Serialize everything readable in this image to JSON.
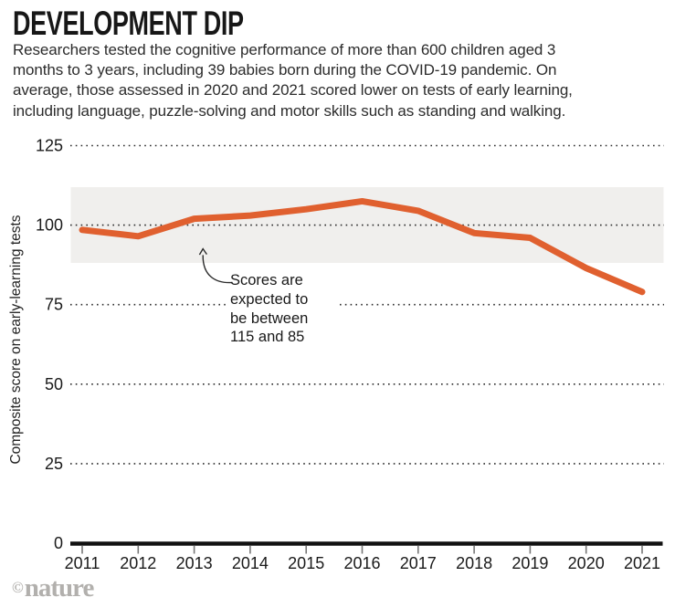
{
  "header": {
    "title": "DEVELOPMENT DIP",
    "subtitle": "Researchers tested the cognitive performance of more than 600 children aged 3\nmonths to 3 years, including 39 babies born during the COVID-19 pandemic. On\naverage, those assessed in 2020 and 2021 scored lower on tests of early learning,\nincluding language, puzzle-solving and motor skills such as standing and walking."
  },
  "chart_data": {
    "type": "line",
    "title": "DEVELOPMENT DIP",
    "x": [
      2011,
      2012,
      2013,
      2014,
      2015,
      2016,
      2017,
      2018,
      2019,
      2020,
      2021
    ],
    "series": [
      {
        "name": "Composite score on early-learning tests",
        "color": "#e0602f",
        "values": [
          98.5,
          96.5,
          102,
          103,
          105,
          107.5,
          104.5,
          97.5,
          96,
          86.5,
          79
        ]
      }
    ],
    "xlabel": "",
    "ylabel": "Composite score on early-learning tests",
    "yticks": [
      0,
      25,
      50,
      75,
      100,
      125
    ],
    "ylim": [
      0,
      130
    ],
    "grid": "dotted-horizontal",
    "legend": "none",
    "expected_band": {
      "low": 85,
      "high": 115
    },
    "annotation": {
      "text": "Scores are\nexpected to\nbe between\n115 and 85"
    }
  },
  "footer": {
    "logo_symbol": "©",
    "logo_text": "nature"
  },
  "colors": {
    "line": "#e0602f",
    "band": "#f0efed",
    "grid": "#2b2b2b",
    "axis": "#111111",
    "tick": "#777777",
    "text": "#1a1a1a",
    "axis_title": "#222222",
    "logo": "#b2b0ad"
  }
}
